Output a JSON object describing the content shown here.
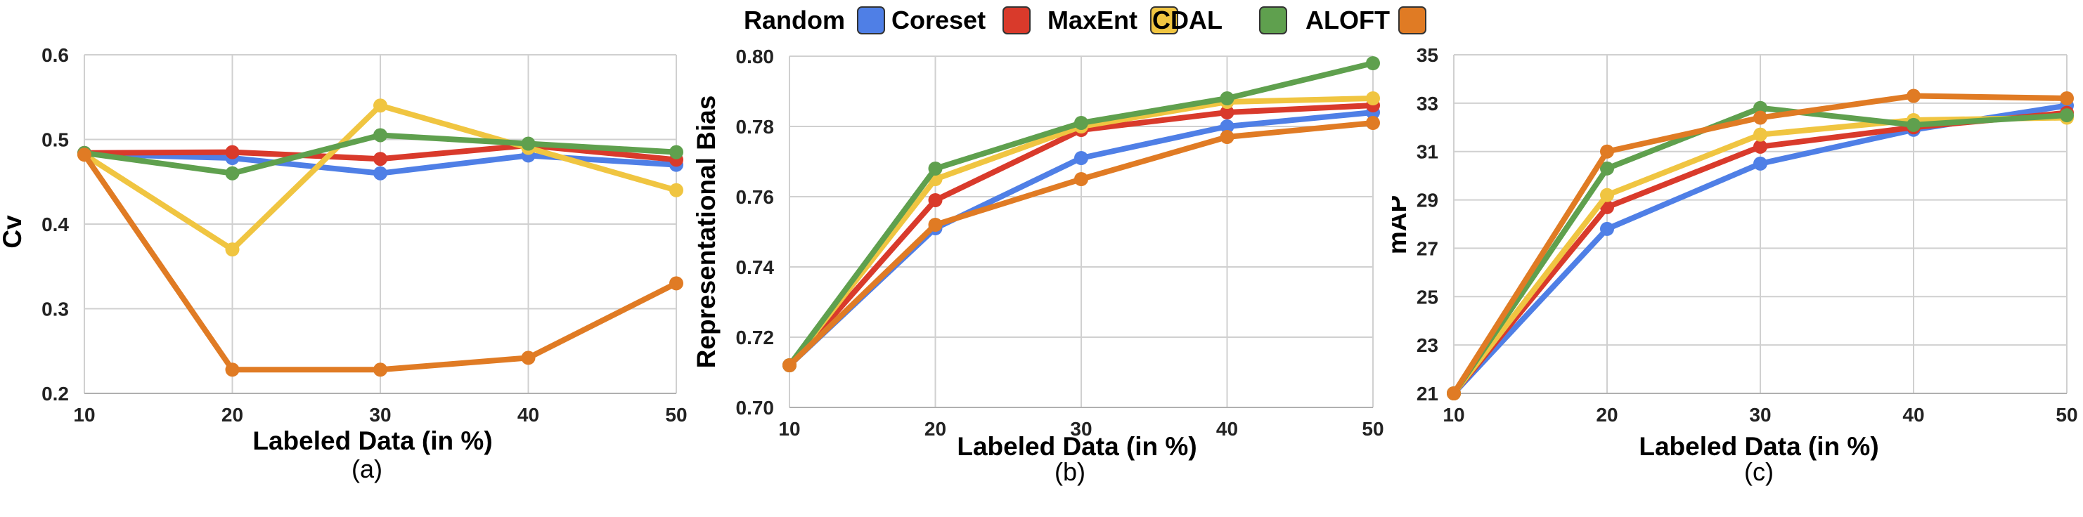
{
  "legend": [
    {
      "name": "Random",
      "color": "#4f7fe6"
    },
    {
      "name": "Coreset",
      "color": "#d93a2b"
    },
    {
      "name": "MaxEnt",
      "color": "#f0c541"
    },
    {
      "name": "CDAL",
      "color": "#5fa04e"
    },
    {
      "name": "ALOFT",
      "color": "#e07b24"
    }
  ],
  "chart_data": [
    {
      "type": "line",
      "caption": "(a)",
      "xlabel": "Labeled Data (in %)",
      "ylabel": "Cv",
      "x": [
        10,
        20,
        30,
        40,
        50
      ],
      "ylim": [
        0.2,
        0.6
      ],
      "yticks": [
        "0.2",
        "0.3",
        "0.4",
        "0.5",
        "0.6"
      ],
      "grid": true,
      "series": [
        {
          "name": "Random",
          "color": "#4f7fe6",
          "values": [
            0.483,
            0.478,
            0.46,
            0.481,
            0.47
          ]
        },
        {
          "name": "Coreset",
          "color": "#d93a2b",
          "values": [
            0.484,
            0.485,
            0.477,
            0.493,
            0.476
          ]
        },
        {
          "name": "MaxEnt",
          "color": "#f0c541",
          "values": [
            0.482,
            0.37,
            0.54,
            0.49,
            0.44
          ]
        },
        {
          "name": "CDAL",
          "color": "#5fa04e",
          "values": [
            0.484,
            0.46,
            0.505,
            0.495,
            0.485
          ]
        },
        {
          "name": "ALOFT",
          "color": "#e07b24",
          "values": [
            0.482,
            0.228,
            0.228,
            0.242,
            0.33
          ]
        }
      ]
    },
    {
      "type": "line",
      "caption": "(b)",
      "xlabel": "Labeled Data (in %)",
      "ylabel": "Representational Bias",
      "x": [
        10,
        20,
        30,
        40,
        50
      ],
      "ylim": [
        0.7,
        0.8
      ],
      "yticks": [
        "0.70",
        "0.72",
        "0.74",
        "0.76",
        "0.78",
        "0.80"
      ],
      "grid": true,
      "series": [
        {
          "name": "Random",
          "color": "#4f7fe6",
          "values": [
            0.712,
            0.751,
            0.771,
            0.78,
            0.784
          ]
        },
        {
          "name": "Coreset",
          "color": "#d93a2b",
          "values": [
            0.712,
            0.759,
            0.779,
            0.784,
            0.786
          ]
        },
        {
          "name": "MaxEnt",
          "color": "#f0c541",
          "values": [
            0.712,
            0.765,
            0.78,
            0.787,
            0.788
          ]
        },
        {
          "name": "CDAL",
          "color": "#5fa04e",
          "values": [
            0.712,
            0.768,
            0.781,
            0.788,
            0.798
          ]
        },
        {
          "name": "ALOFT",
          "color": "#e07b24",
          "values": [
            0.712,
            0.752,
            0.765,
            0.777,
            0.781
          ]
        }
      ]
    },
    {
      "type": "line",
      "caption": "(c)",
      "xlabel": "Labeled Data (in %)",
      "ylabel": "mAP",
      "x": [
        10,
        20,
        30,
        40,
        50
      ],
      "ylim": [
        21,
        35
      ],
      "yticks": [
        "21",
        "23",
        "25",
        "27",
        "29",
        "31",
        "33",
        "35"
      ],
      "grid": true,
      "series": [
        {
          "name": "Random",
          "color": "#4f7fe6",
          "values": [
            21.0,
            27.8,
            30.5,
            31.9,
            32.9
          ]
        },
        {
          "name": "Coreset",
          "color": "#d93a2b",
          "values": [
            21.0,
            28.7,
            31.2,
            32.0,
            32.6
          ]
        },
        {
          "name": "MaxEnt",
          "color": "#f0c541",
          "values": [
            21.0,
            29.2,
            31.7,
            32.3,
            32.4
          ]
        },
        {
          "name": "CDAL",
          "color": "#5fa04e",
          "values": [
            21.0,
            30.3,
            32.8,
            32.1,
            32.5
          ]
        },
        {
          "name": "ALOFT",
          "color": "#e07b24",
          "values": [
            21.0,
            31.0,
            32.4,
            33.3,
            33.2
          ]
        }
      ]
    }
  ]
}
